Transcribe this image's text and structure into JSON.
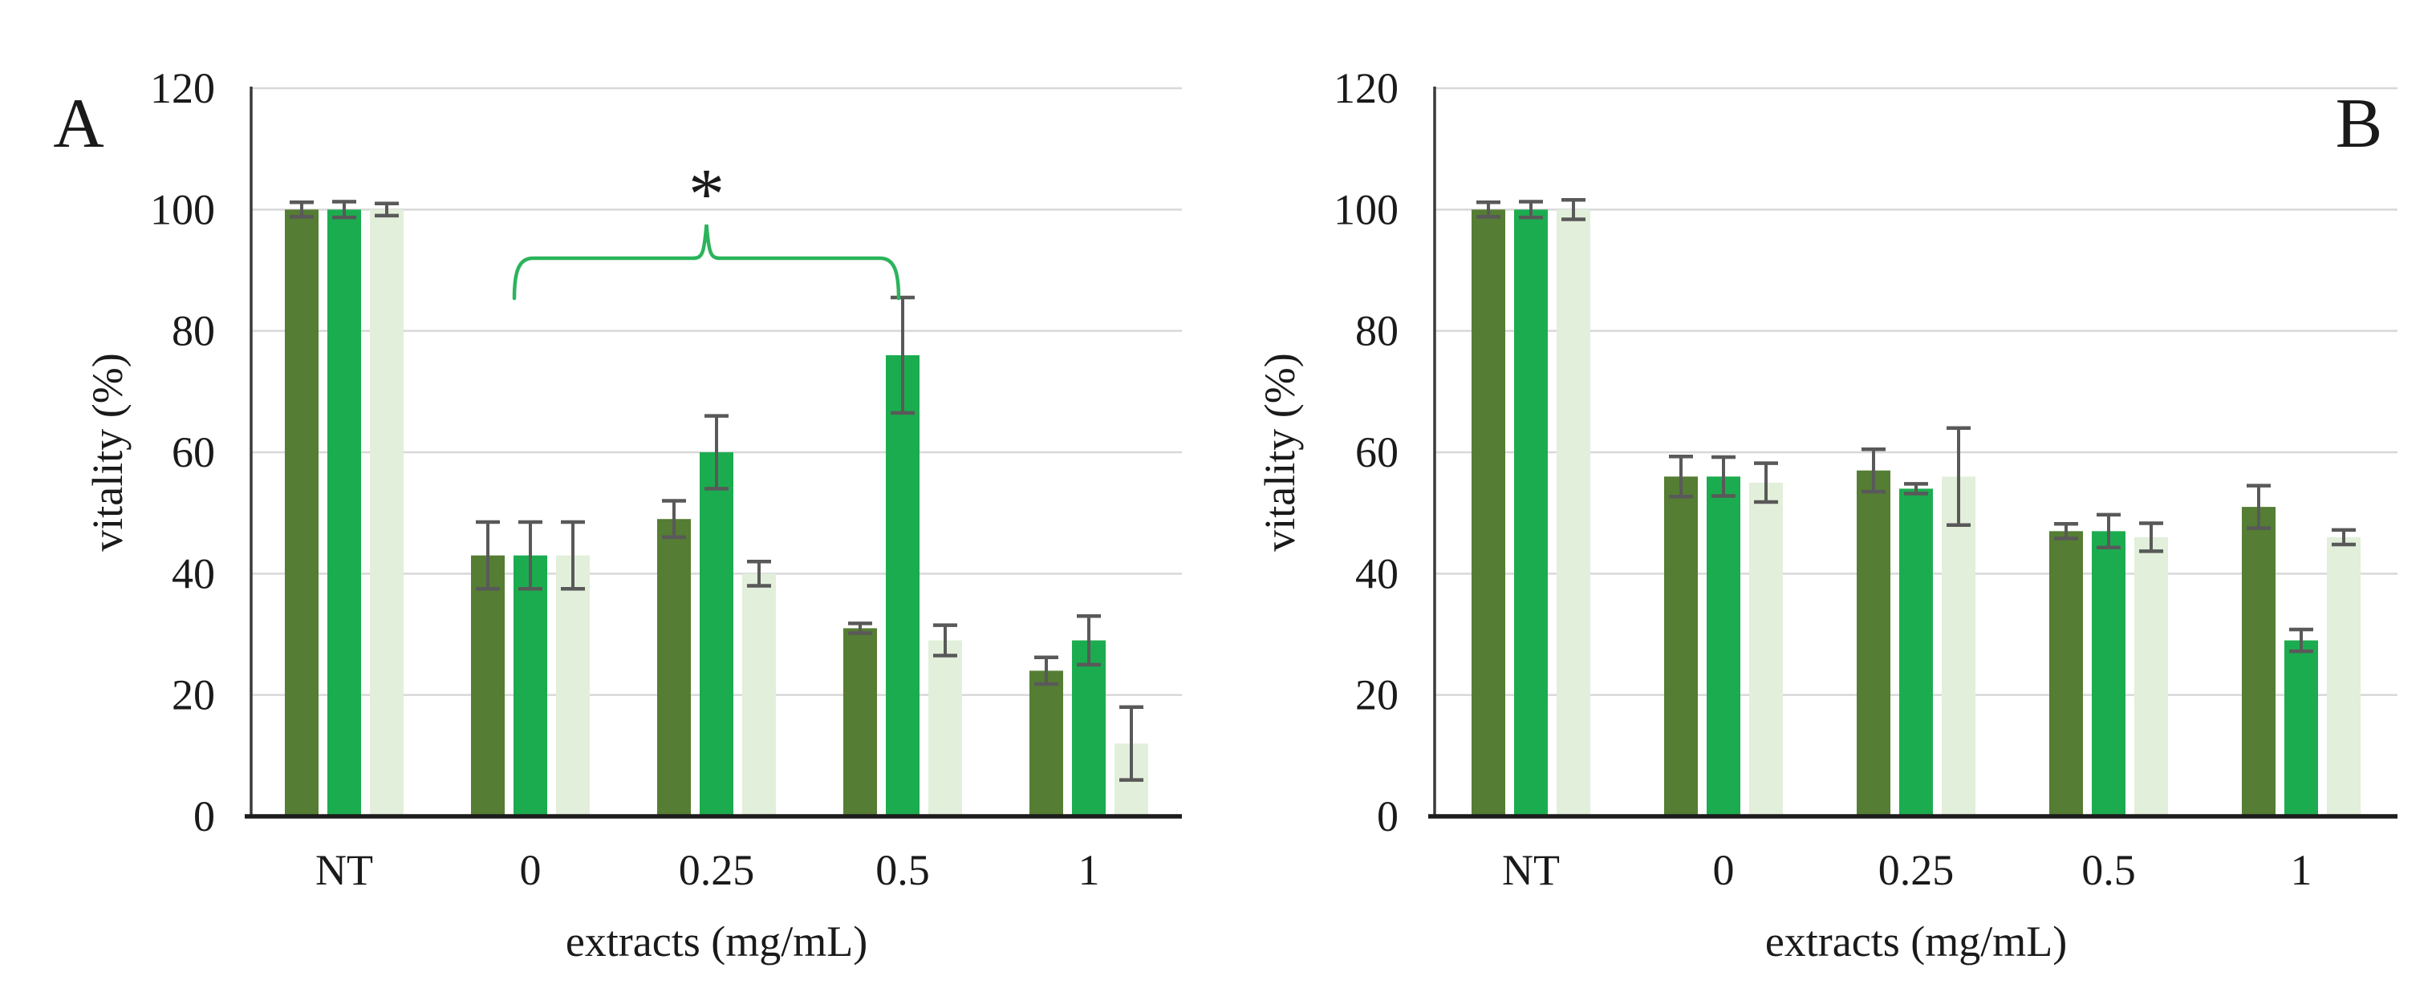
{
  "figure": {
    "background": "#ffffff",
    "error_bar_color": "#595959",
    "gridline_color": "#d8d8d8",
    "axis_line_color": "#3a3a3a",
    "baseline_color": "#1c1c1c"
  },
  "chart_data": [
    {
      "type": "bar",
      "panel": "A",
      "title": "",
      "xlabel": "extracts (mg/mL)",
      "ylabel": "vitality (%)",
      "categories": [
        "NT",
        "0",
        "0.25",
        "0.5",
        "1"
      ],
      "ylim": [
        0,
        120
      ],
      "yticks": [
        0,
        20,
        40,
        60,
        80,
        100,
        120
      ],
      "grid": true,
      "legend": "none",
      "series": [
        {
          "name": "dark-green",
          "color": "#557D33",
          "values": [
            100,
            43,
            49,
            31,
            24
          ],
          "errors": [
            1.2,
            5.5,
            3,
            0.8,
            2.2
          ]
        },
        {
          "name": "medium-green",
          "color": "#1CAC50",
          "values": [
            100,
            43,
            60,
            76,
            29
          ],
          "errors": [
            1.3,
            5.5,
            6,
            9.5,
            4
          ]
        },
        {
          "name": "pale-green",
          "color": "#E2EFDA",
          "values": [
            100,
            43,
            40,
            29,
            12
          ],
          "errors": [
            1.0,
            5.5,
            2,
            2.5,
            6
          ]
        }
      ],
      "annotation": {
        "type": "significance-bracket",
        "label": "*",
        "color": "#2CB45C",
        "from_category": "0",
        "to_category": "0.5"
      }
    },
    {
      "type": "bar",
      "panel": "B",
      "title": "",
      "xlabel": "extracts (mg/mL)",
      "ylabel": "vitality (%)",
      "categories": [
        "NT",
        "0",
        "0.25",
        "0.5",
        "1"
      ],
      "ylim": [
        0,
        120
      ],
      "yticks": [
        0,
        20,
        40,
        60,
        80,
        100,
        120
      ],
      "grid": true,
      "legend": "none",
      "series": [
        {
          "name": "dark-green",
          "color": "#557D33",
          "values": [
            100,
            56,
            57,
            47,
            51
          ],
          "errors": [
            1.2,
            3.3,
            3.5,
            1.2,
            3.5
          ]
        },
        {
          "name": "medium-green",
          "color": "#1CAC50",
          "values": [
            100,
            56,
            54,
            47,
            29
          ],
          "errors": [
            1.3,
            3.2,
            0.8,
            2.7,
            1.8
          ]
        },
        {
          "name": "pale-green",
          "color": "#E2EFDA",
          "values": [
            100,
            55,
            56,
            46,
            46
          ],
          "errors": [
            1.6,
            3.2,
            8,
            2.3,
            1.2
          ]
        }
      ],
      "annotation": null
    }
  ]
}
